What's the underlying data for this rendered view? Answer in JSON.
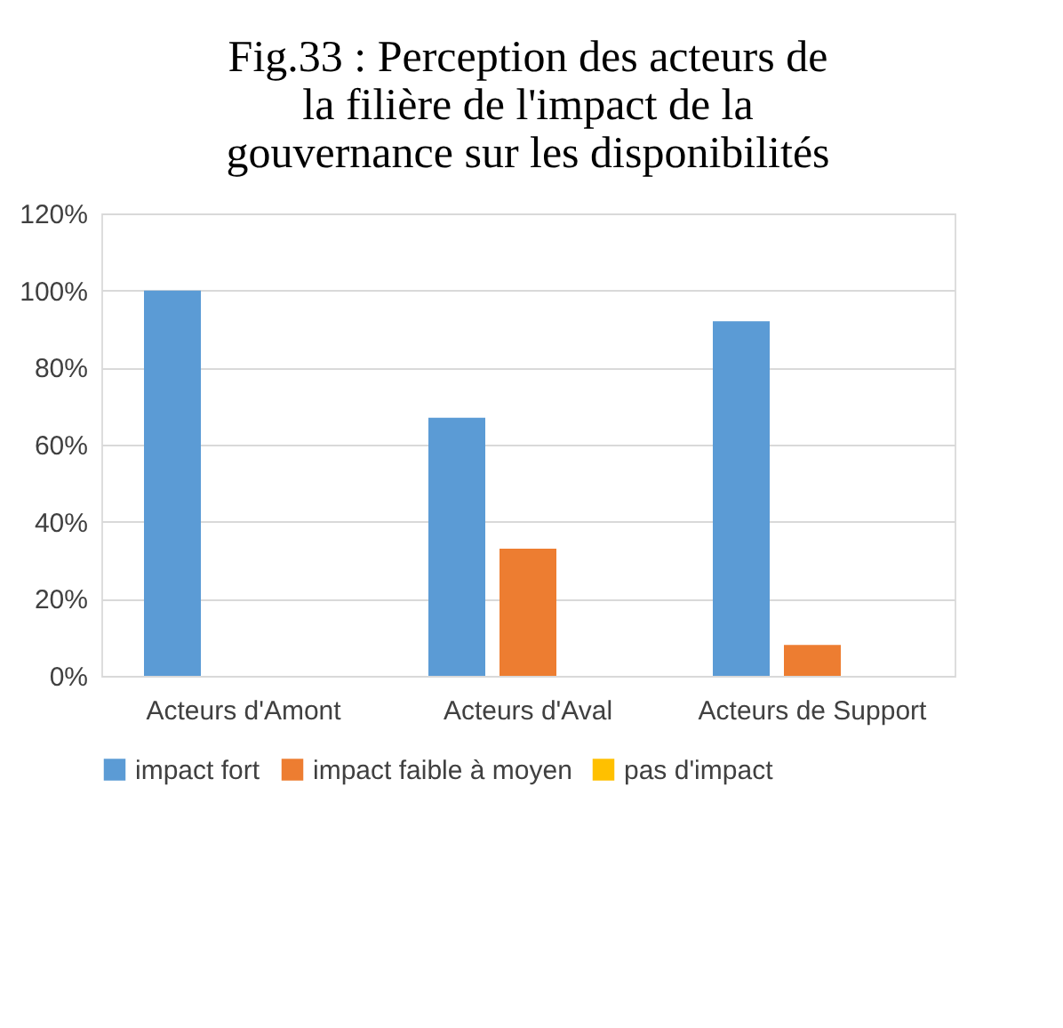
{
  "chart_data": {
    "type": "bar",
    "title": "Fig.33 : Perception des acteurs de la filière de l'impact de la gouvernance sur les disponibilités",
    "categories": [
      "Acteurs d'Amont",
      "Acteurs d'Aval",
      "Acteurs de Support"
    ],
    "series": [
      {
        "name": "impact fort",
        "color": "#5b9bd5",
        "values": [
          100,
          67,
          92
        ]
      },
      {
        "name": "impact faible à moyen",
        "color": "#ed7d31",
        "values": [
          0,
          33,
          8
        ]
      },
      {
        "name": "pas d'impact",
        "color": "#ffc000",
        "values": [
          0,
          0,
          0
        ]
      }
    ],
    "ylim": [
      0,
      120
    ],
    "yticks": [
      {
        "value": 0,
        "label": "0%"
      },
      {
        "value": 20,
        "label": "20%"
      },
      {
        "value": 40,
        "label": "40%"
      },
      {
        "value": 60,
        "label": "60%"
      },
      {
        "value": 80,
        "label": "80%"
      },
      {
        "value": 100,
        "label": "100%"
      },
      {
        "value": 120,
        "label": "120%"
      }
    ],
    "grid": "y",
    "legend": "bottom"
  }
}
